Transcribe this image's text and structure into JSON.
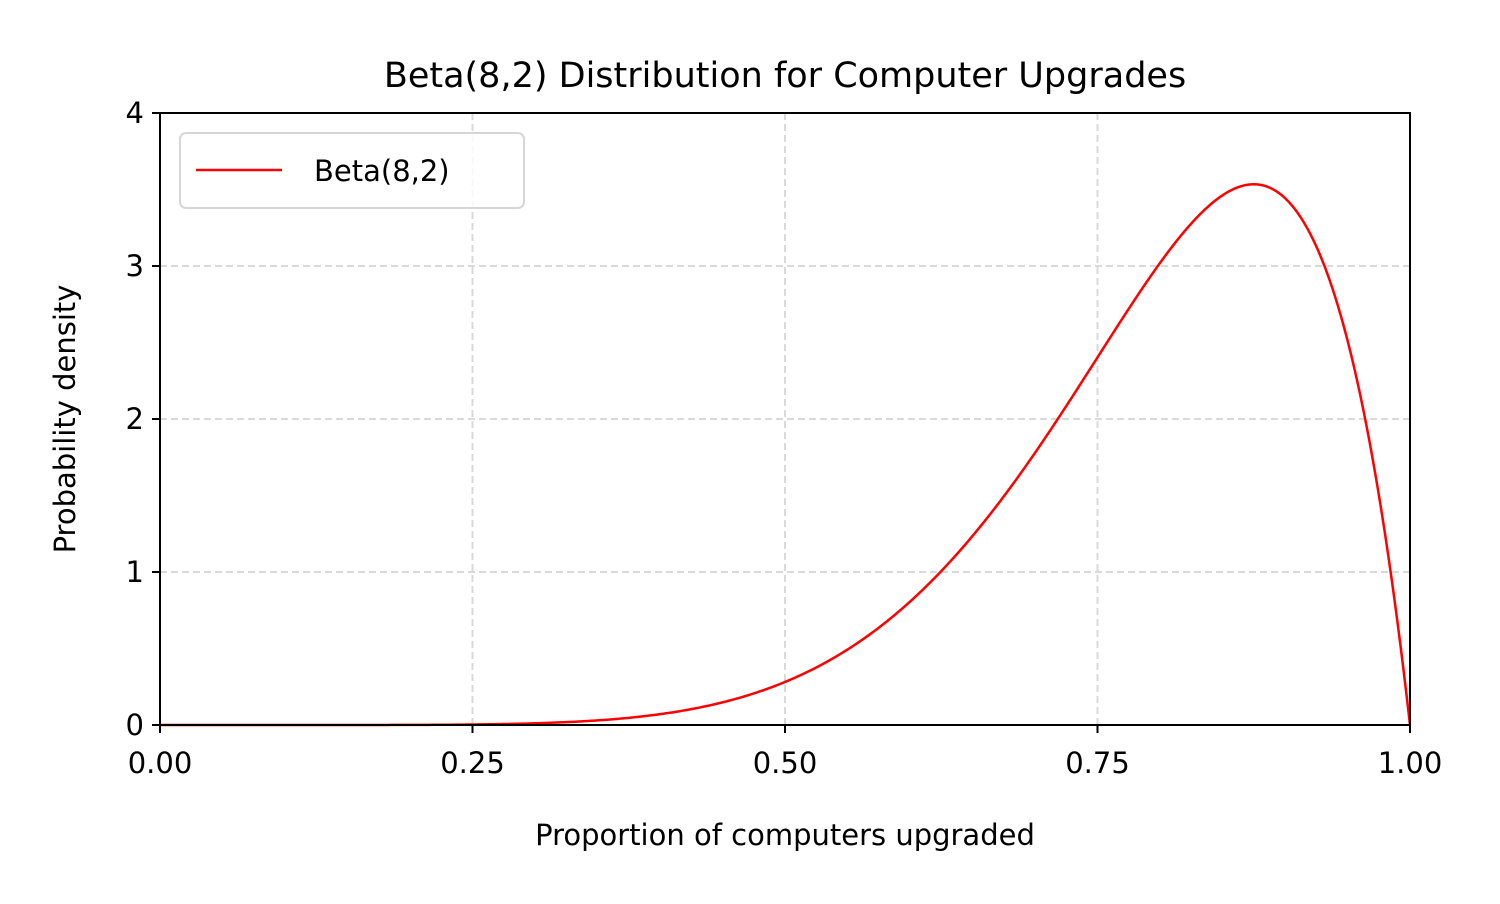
{
  "chart_data": {
    "type": "line",
    "title": "Beta(8,2) Distribution for Computer Upgrades",
    "xlabel": "Proportion of computers upgraded",
    "ylabel": "Probability density",
    "xlim": [
      0,
      1
    ],
    "ylim": [
      0,
      4
    ],
    "x_ticks": [
      "0.00",
      "0.25",
      "0.50",
      "0.75",
      "1.00"
    ],
    "y_ticks": [
      "0",
      "1",
      "2",
      "3",
      "4"
    ],
    "grid": true,
    "legend_position": "upper-left",
    "series": [
      {
        "name": "Beta(8,2)",
        "color": "#ff0000",
        "distribution": "beta",
        "alpha": 8,
        "beta": 2,
        "x": [
          0.0,
          0.05,
          0.1,
          0.15,
          0.2,
          0.25,
          0.3,
          0.35,
          0.4,
          0.45,
          0.5,
          0.55,
          0.6,
          0.65,
          0.7,
          0.75,
          0.8,
          0.825,
          0.85,
          0.875,
          0.9,
          0.925,
          0.95,
          0.975,
          1.0
        ],
        "y": [
          0.0,
          0.0,
          0.0,
          0.0,
          0.001,
          0.003,
          0.011,
          0.034,
          0.086,
          0.187,
          0.281,
          0.752,
          0.806,
          1.148,
          1.482,
          2.403,
          2.936,
          3.199,
          3.433,
          3.534,
          3.444,
          3.18,
          2.695,
          1.727,
          0.0
        ]
      }
    ]
  }
}
